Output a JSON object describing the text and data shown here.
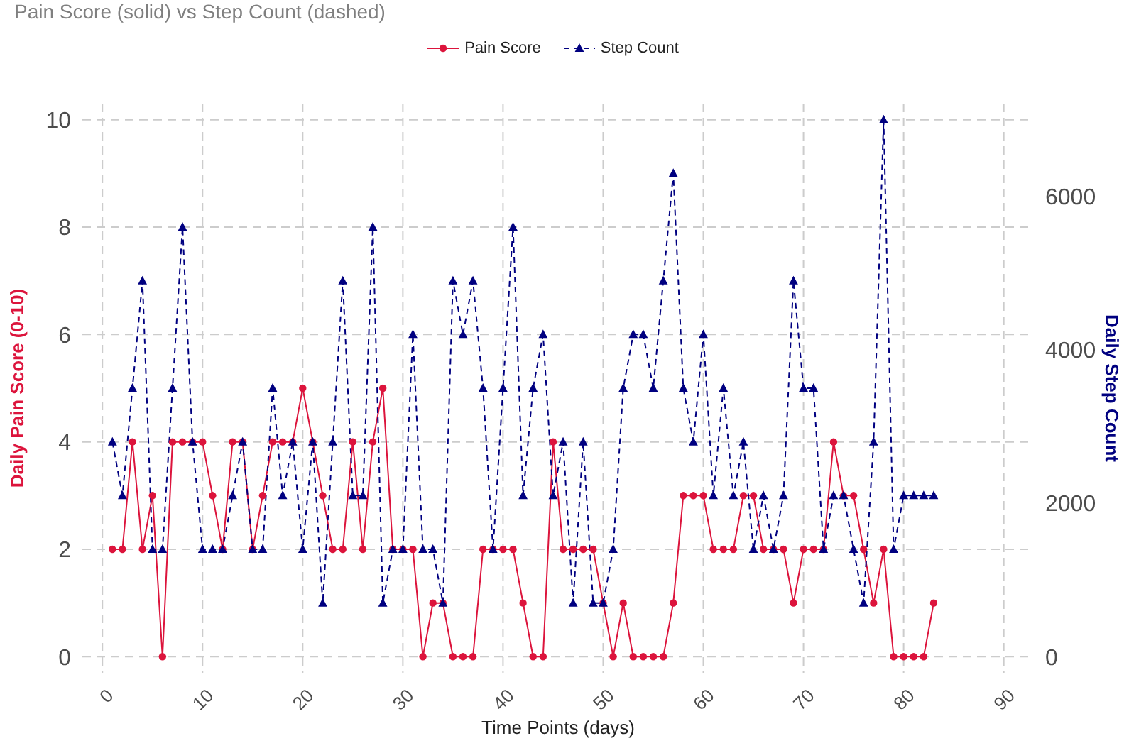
{
  "chart_data": {
    "type": "line",
    "title": "Pain Score (solid) vs Step Count (dashed)",
    "xlabel": "Time Points (days)",
    "ylabel": "Daily Pain Score (0-10)",
    "y2label": "Daily Step Count",
    "x": [
      1,
      2,
      3,
      4,
      5,
      6,
      7,
      8,
      9,
      10,
      11,
      12,
      13,
      14,
      15,
      16,
      17,
      18,
      19,
      20,
      21,
      22,
      23,
      24,
      25,
      26,
      27,
      28,
      29,
      30,
      31,
      32,
      33,
      34,
      35,
      36,
      37,
      38,
      39,
      40,
      41,
      42,
      43,
      44,
      45,
      46,
      47,
      48,
      49,
      50,
      51,
      52,
      53,
      54,
      55,
      56,
      57,
      58,
      59,
      60,
      61,
      62,
      63,
      64,
      65,
      66,
      67,
      68,
      69,
      70,
      71,
      72,
      73,
      74,
      75,
      76,
      77,
      78,
      79,
      80,
      81,
      82,
      83
    ],
    "series": [
      {
        "name": "Pain Score",
        "color": "#dc143c",
        "marker": "circle",
        "line_style": "solid",
        "values": [
          2,
          2,
          4,
          2,
          3,
          0,
          4,
          4,
          4,
          4,
          3,
          2,
          4,
          4,
          2,
          3,
          4,
          4,
          4,
          5,
          4,
          3,
          2,
          2,
          4,
          2,
          4,
          5,
          2,
          2,
          2,
          0,
          1,
          1,
          0,
          0,
          0,
          2,
          2,
          2,
          2,
          1,
          0,
          0,
          4,
          2,
          2,
          2,
          2,
          1,
          0,
          1,
          0,
          0,
          0,
          0,
          1,
          3,
          3,
          3,
          2,
          2,
          2,
          3,
          3,
          2,
          2,
          2,
          1,
          2,
          2,
          2,
          4,
          3,
          3,
          2,
          1,
          2,
          0,
          0,
          0,
          0,
          1
        ]
      },
      {
        "name": "Step Count",
        "color": "#000080",
        "marker": "triangle",
        "line_style": "dashed",
        "axis": "y2",
        "values": [
          2800,
          2100,
          3500,
          4900,
          1400,
          1400,
          3500,
          5600,
          2800,
          1400,
          1400,
          1400,
          2100,
          2800,
          1400,
          1400,
          3500,
          2100,
          2800,
          1400,
          2800,
          700,
          2800,
          4900,
          2100,
          2100,
          5600,
          700,
          1400,
          1400,
          4200,
          1400,
          1400,
          700,
          4900,
          4200,
          4900,
          3500,
          1400,
          3500,
          5600,
          2100,
          3500,
          4200,
          2100,
          2800,
          700,
          2800,
          700,
          700,
          1400,
          3500,
          4200,
          4200,
          3500,
          4900,
          6300,
          3500,
          2800,
          4200,
          2100,
          3500,
          2100,
          2800,
          1400,
          2100,
          1400,
          2100,
          4900,
          3500,
          3500,
          1400,
          2100,
          2100,
          1400,
          700,
          2800,
          7000,
          1400,
          2100,
          2100,
          2100,
          2100
        ]
      }
    ],
    "xlim": [
      -2,
      93
    ],
    "xticks": [
      0,
      10,
      20,
      30,
      40,
      50,
      60,
      70,
      80,
      90
    ],
    "ylim": [
      -0.3,
      10.3
    ],
    "yticks": [
      0,
      2,
      4,
      6,
      8,
      10
    ],
    "y2lim": [
      -210,
      7210
    ],
    "y2ticks": [
      0,
      2000,
      4000,
      6000
    ],
    "grid": true,
    "legend": "top"
  }
}
